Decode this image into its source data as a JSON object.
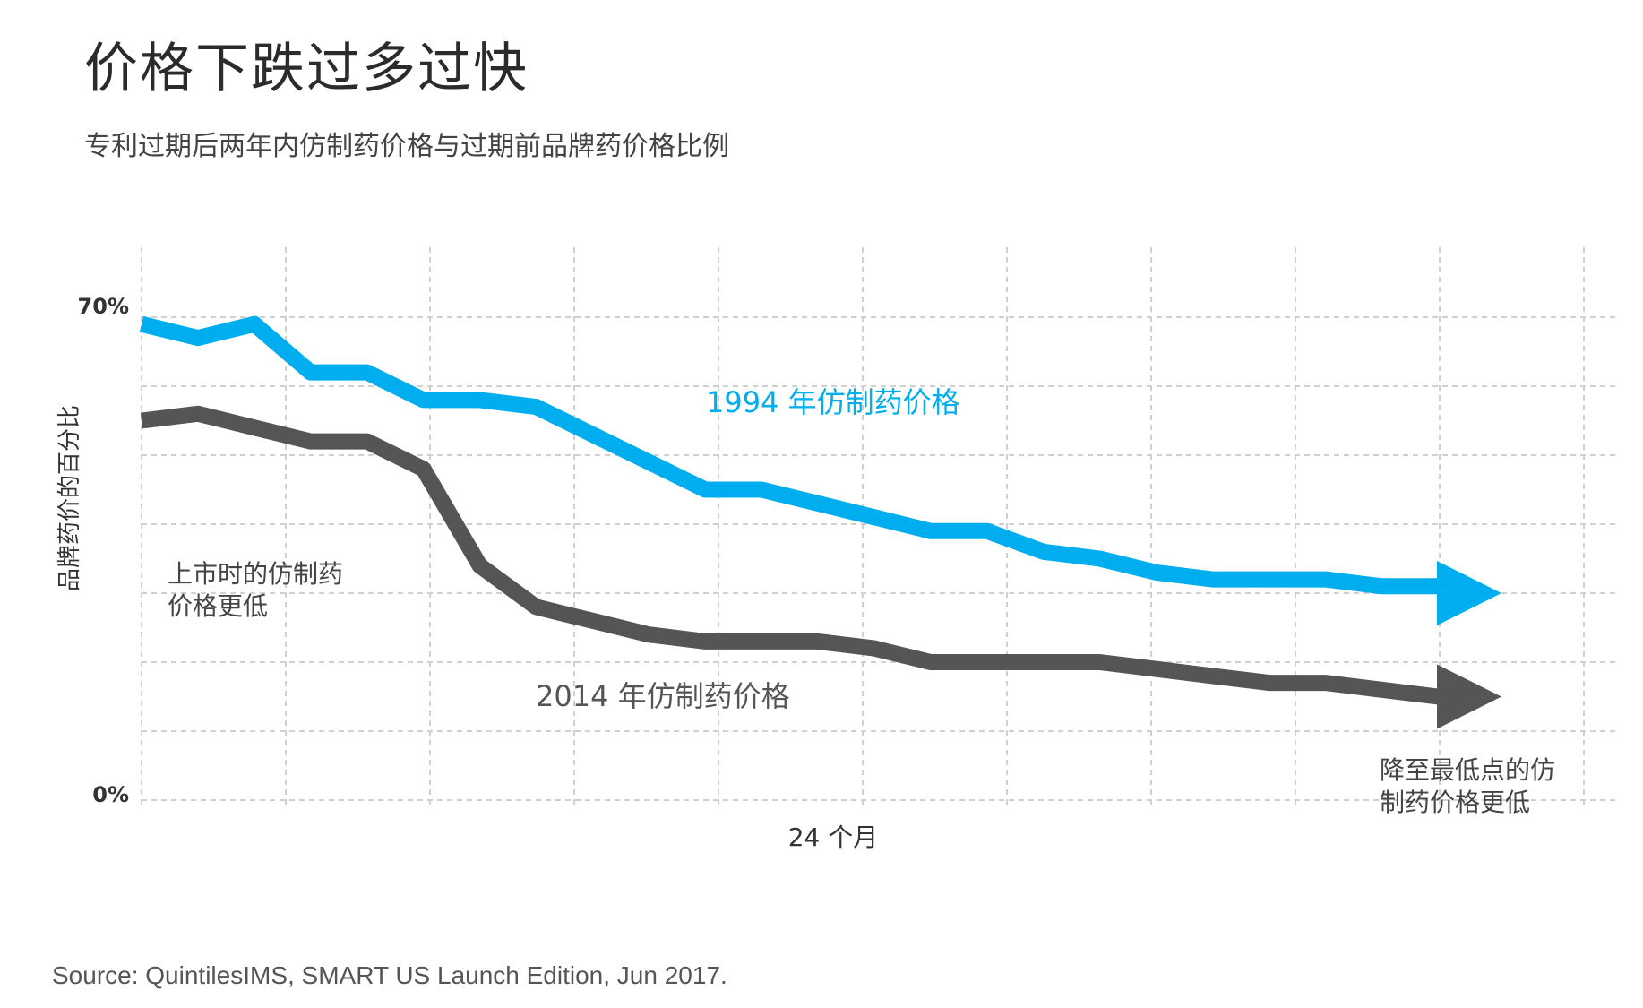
{
  "title": "价格下跌过多过快",
  "subtitle": "专利过期后两年内仿制药价格与过期前品牌药价格比例",
  "source": "Source: QuintilesIMS, SMART US Launch Edition, Jun 2017.",
  "chart_data": {
    "type": "line",
    "xlabel": "24 个月",
    "ylabel": "品牌药价的百分比",
    "ytick_labels": [
      "70%",
      "0%"
    ],
    "x": [
      0,
      1,
      2,
      3,
      4,
      5,
      6,
      7,
      8,
      9,
      10,
      11,
      12,
      13,
      14,
      15,
      16,
      17,
      18,
      19,
      20,
      21,
      22,
      23,
      24
    ],
    "ylim": [
      0,
      70
    ],
    "grid": true,
    "series": [
      {
        "name": "1994 年仿制药价格",
        "color": "#00aeef",
        "values": [
          69,
          67,
          69,
          62,
          62,
          58,
          58,
          57,
          53,
          49,
          45,
          45,
          43,
          41,
          39,
          39,
          36,
          35,
          33,
          32,
          32,
          32,
          31,
          31,
          30
        ]
      },
      {
        "name": "2014 年仿制药价格",
        "color": "#555555",
        "values": [
          55,
          56,
          54,
          52,
          52,
          48,
          34,
          28,
          26,
          24,
          23,
          23,
          23,
          22,
          20,
          20,
          20,
          20,
          19,
          18,
          17,
          17,
          16,
          15,
          15
        ]
      }
    ],
    "annotations": [
      {
        "text_lines": [
          "上市时的仿制药",
          "价格更低"
        ]
      },
      {
        "text_lines": [
          "降至最低点的仿",
          "制药价格更低"
        ]
      }
    ]
  }
}
